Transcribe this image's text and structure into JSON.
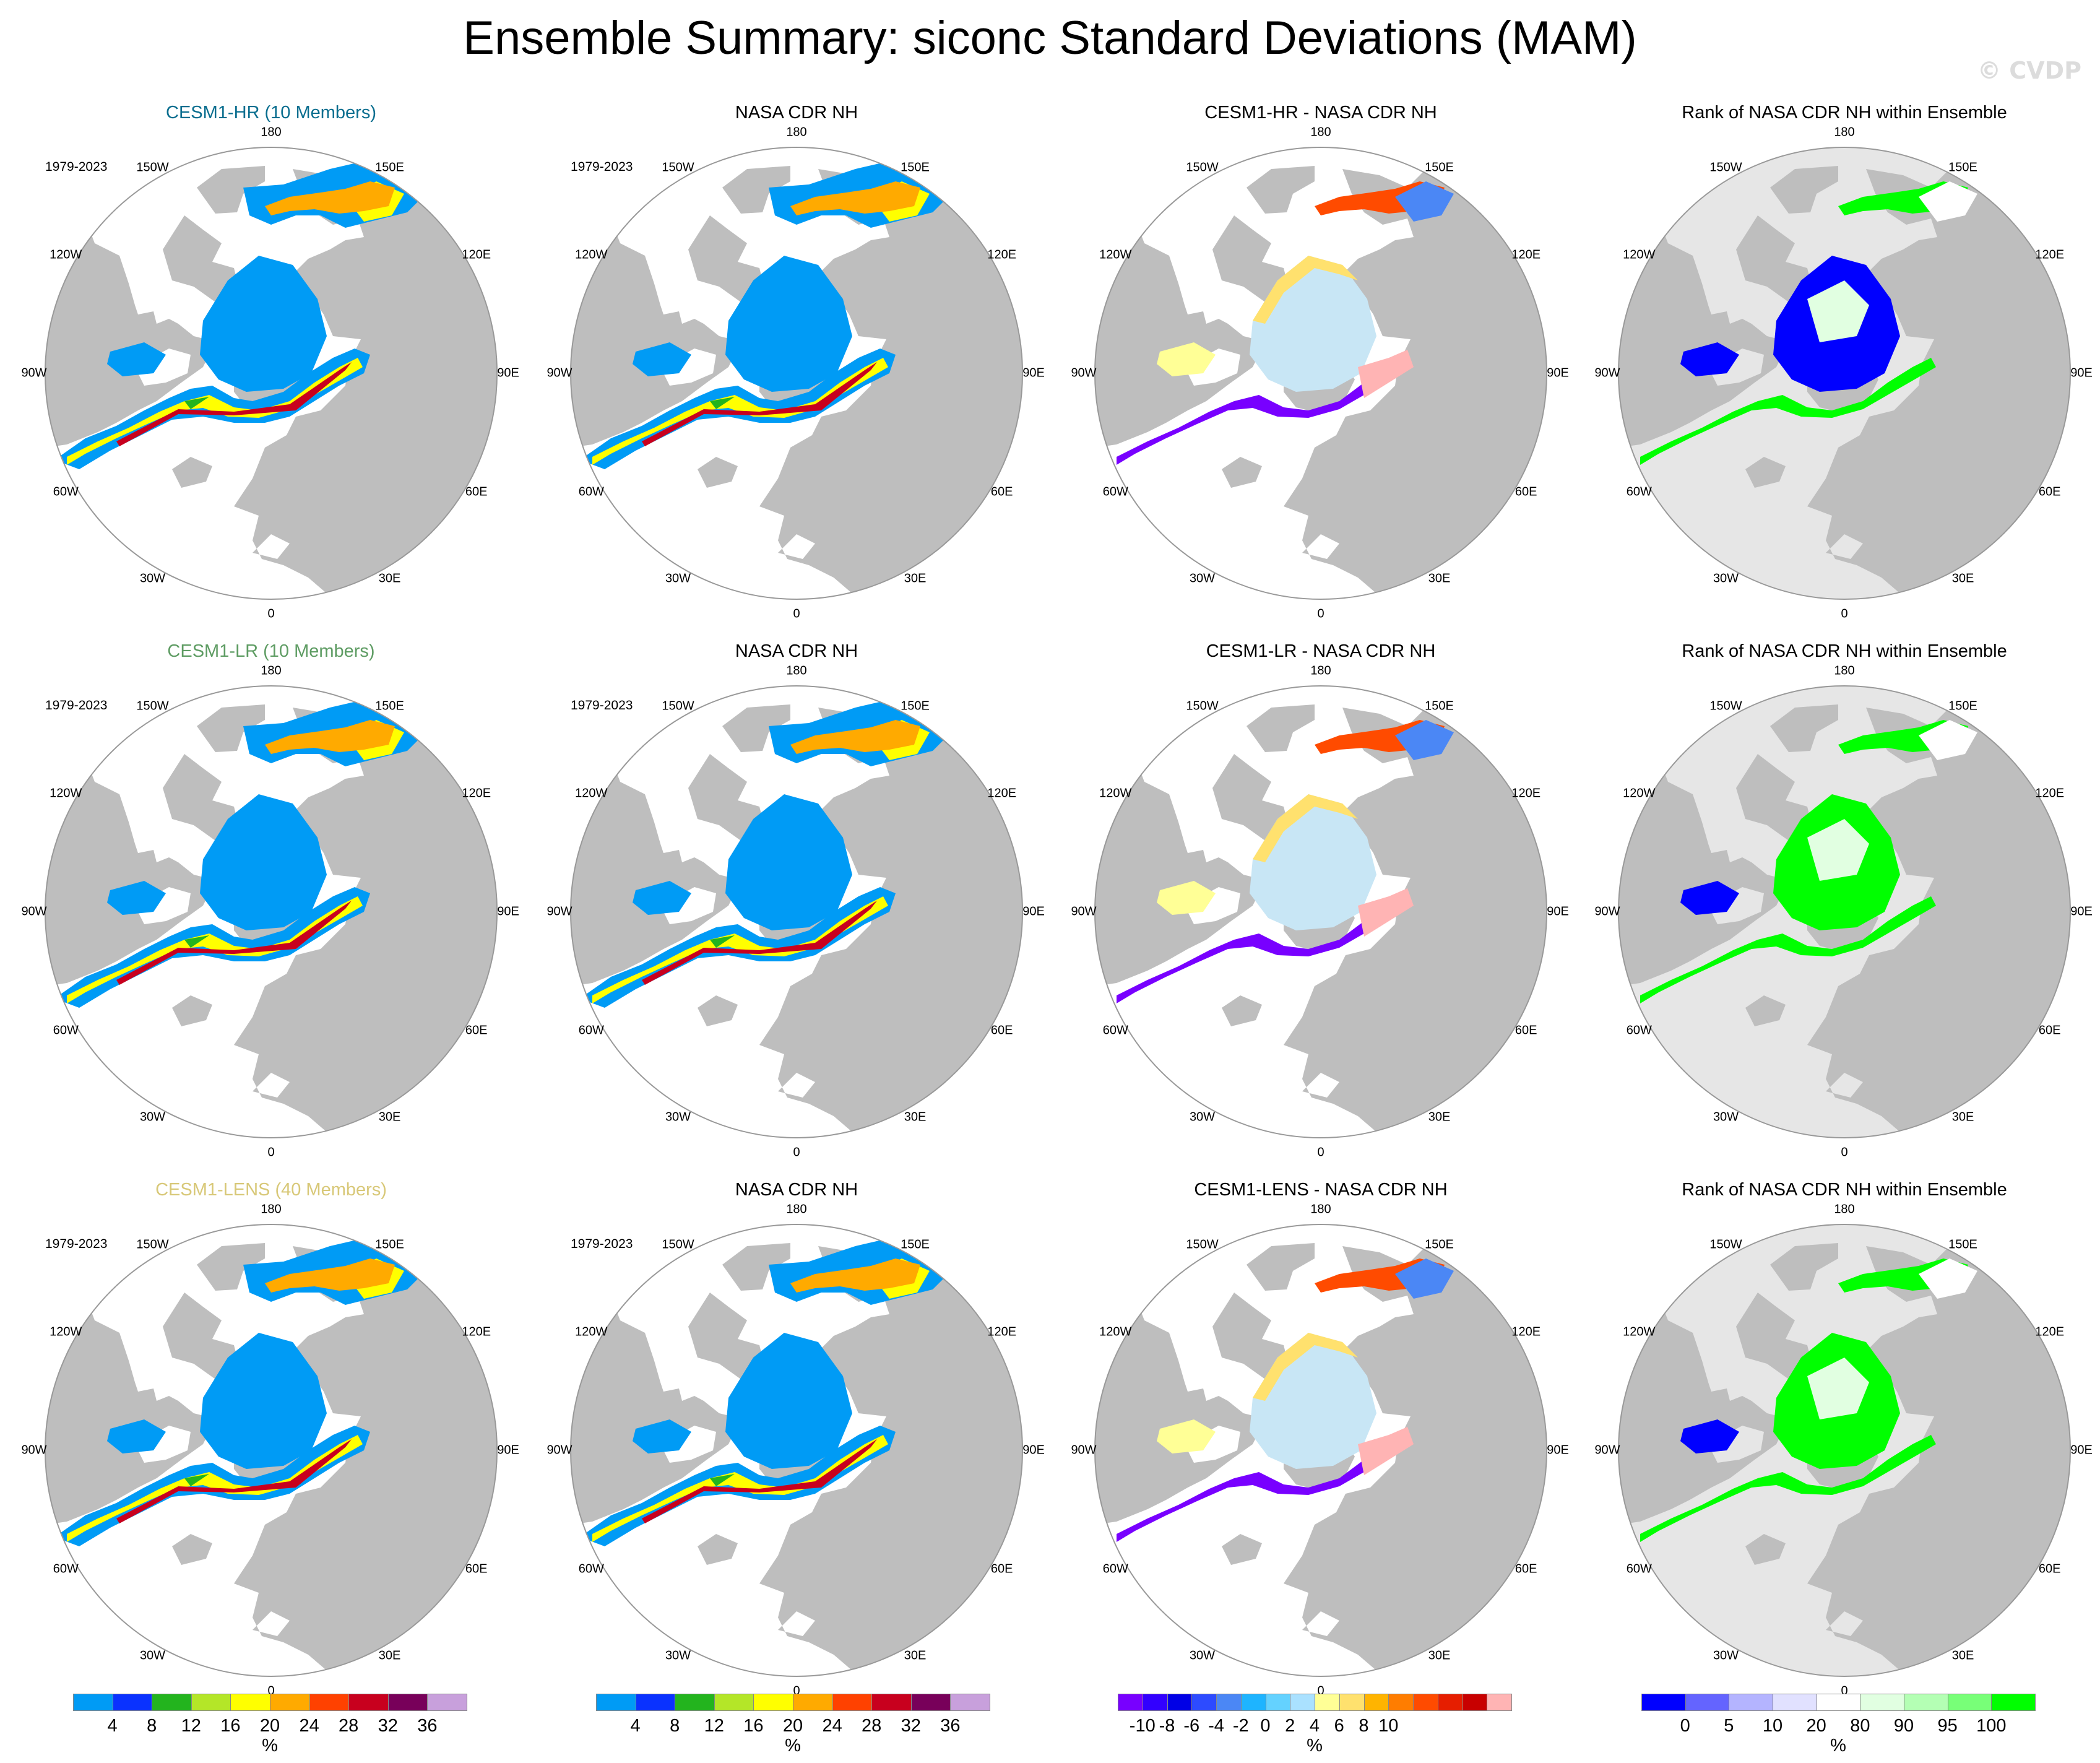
{
  "title": "Ensemble Summary: siconc Standard Deviations (MAM)",
  "watermark": "© CVDP",
  "period_label": "1979-2023",
  "longitude_labels": [
    "180",
    "150E",
    "120E",
    "90E",
    "60E",
    "30E",
    "0",
    "30W",
    "60W",
    "90W",
    "120W",
    "150W"
  ],
  "rows": [
    {
      "titles": [
        "CESM1-HR (10 Members)",
        "NASA CDR NH",
        "CESM1-HR - NASA CDR NH",
        "Rank of NASA CDR NH within Ensemble"
      ],
      "title_color": "#0a6e8f"
    },
    {
      "titles": [
        "CESM1-LR (10 Members)",
        "NASA CDR NH",
        "CESM1-LR - NASA CDR NH",
        "Rank of NASA CDR NH within Ensemble"
      ],
      "title_color": "#5e9c63"
    },
    {
      "titles": [
        "CESM1-LENS (40 Members)",
        "NASA CDR NH",
        "CESM1-LENS - NASA CDR NH",
        "Rank of NASA CDR NH within Ensemble"
      ],
      "title_color": "#d8c878"
    }
  ],
  "colorbars": {
    "std": {
      "colors": [
        "#009bf5",
        "#0a32ff",
        "#23b41e",
        "#b4e628",
        "#ffff00",
        "#ffaa00",
        "#ff4100",
        "#c8001e",
        "#78005a",
        "#c8a0dc"
      ],
      "ticks": [
        "4",
        "8",
        "12",
        "16",
        "20",
        "24",
        "28",
        "32",
        "36"
      ],
      "unit": "%"
    },
    "diff": {
      "colors": [
        "#7800ff",
        "#3200ff",
        "#0000e6",
        "#2d4bff",
        "#4b87f5",
        "#1eb4ff",
        "#64d2ff",
        "#aae1ff",
        "#ffff96",
        "#ffe16e",
        "#ffb400",
        "#ff7d00",
        "#ff4b00",
        "#e61e00",
        "#c80000",
        "#ffb4b4"
      ],
      "ticks": [
        "-10",
        "-8",
        "-6",
        "-4",
        "-2",
        "0",
        "2",
        "4",
        "6",
        "8",
        "10"
      ],
      "unit": "%"
    },
    "rank": {
      "colors": [
        "#0000ff",
        "#6464ff",
        "#b4b4ff",
        "#e1e1ff",
        "#ffffff",
        "#e1ffe1",
        "#b4ffb4",
        "#78ff78",
        "#00ff00"
      ],
      "ticks": [
        "0",
        "5",
        "10",
        "20",
        "80",
        "90",
        "95",
        "100"
      ],
      "unit": "%"
    }
  }
}
